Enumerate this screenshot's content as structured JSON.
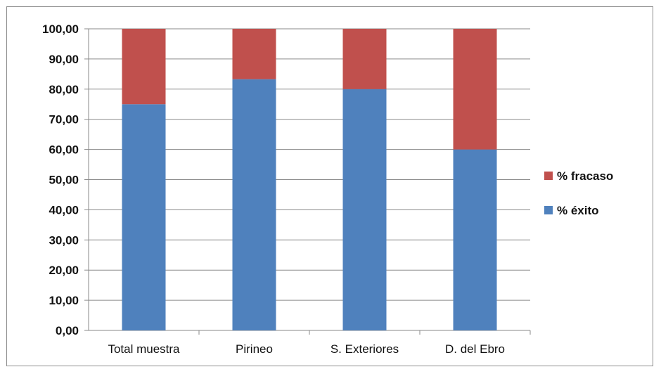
{
  "chart_data": {
    "type": "bar",
    "stacked": true,
    "categories": [
      "Total muestra",
      "Pirineo",
      "S. Exteriores",
      "D. del Ebro"
    ],
    "series": [
      {
        "name": "% éxito",
        "color": "#4f81bd",
        "values": [
          75.0,
          83.3,
          80.0,
          60.0
        ]
      },
      {
        "name": "% fracaso",
        "color": "#c0504d",
        "values": [
          25.0,
          16.7,
          20.0,
          40.0
        ]
      }
    ],
    "yticks": [
      "0,00",
      "10,00",
      "20,00",
      "30,00",
      "40,00",
      "50,00",
      "60,00",
      "70,00",
      "80,00",
      "90,00",
      "100,00"
    ],
    "ylim": [
      0,
      100
    ],
    "grid": true,
    "legend": "right",
    "legend_order": [
      "% fracaso",
      "% éxito"
    ]
  }
}
